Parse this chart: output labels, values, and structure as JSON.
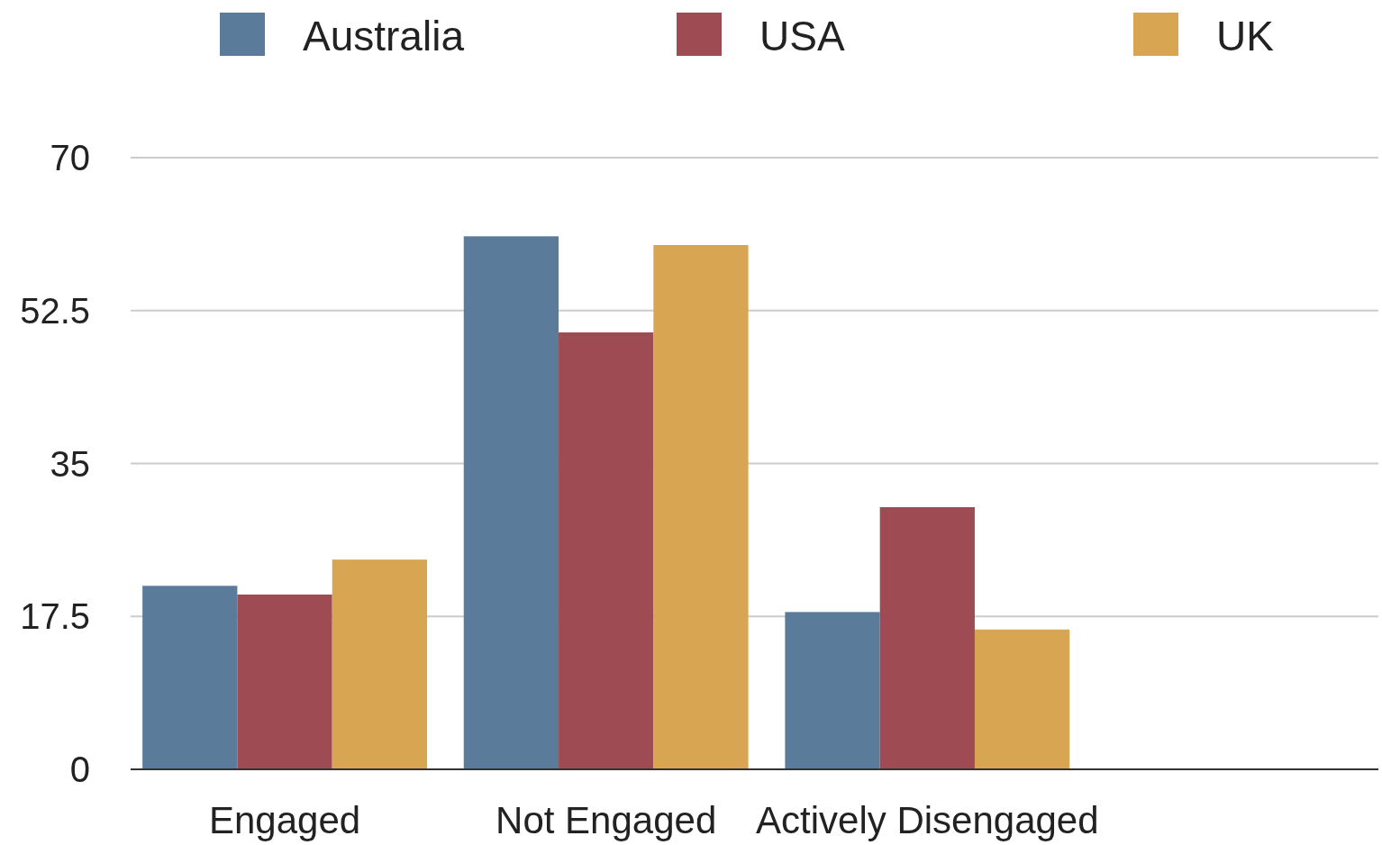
{
  "chart_data": {
    "type": "bar",
    "categories": [
      "Engaged",
      "Not Engaged",
      "Actively Disengaged",
      null
    ],
    "series": [
      {
        "name": "Australia",
        "color": "#5b7b9b",
        "values": [
          21,
          61,
          18,
          null
        ]
      },
      {
        "name": "USA",
        "color": "#9e4b53",
        "values": [
          20,
          50,
          30,
          null
        ]
      },
      {
        "name": "UK",
        "color": "#d8a552",
        "values": [
          24,
          60,
          16,
          null
        ]
      }
    ],
    "ylim": [
      0,
      70
    ],
    "yticks": [
      0,
      17.5,
      35,
      52.5,
      70
    ],
    "grid": "y",
    "legend": "top"
  }
}
